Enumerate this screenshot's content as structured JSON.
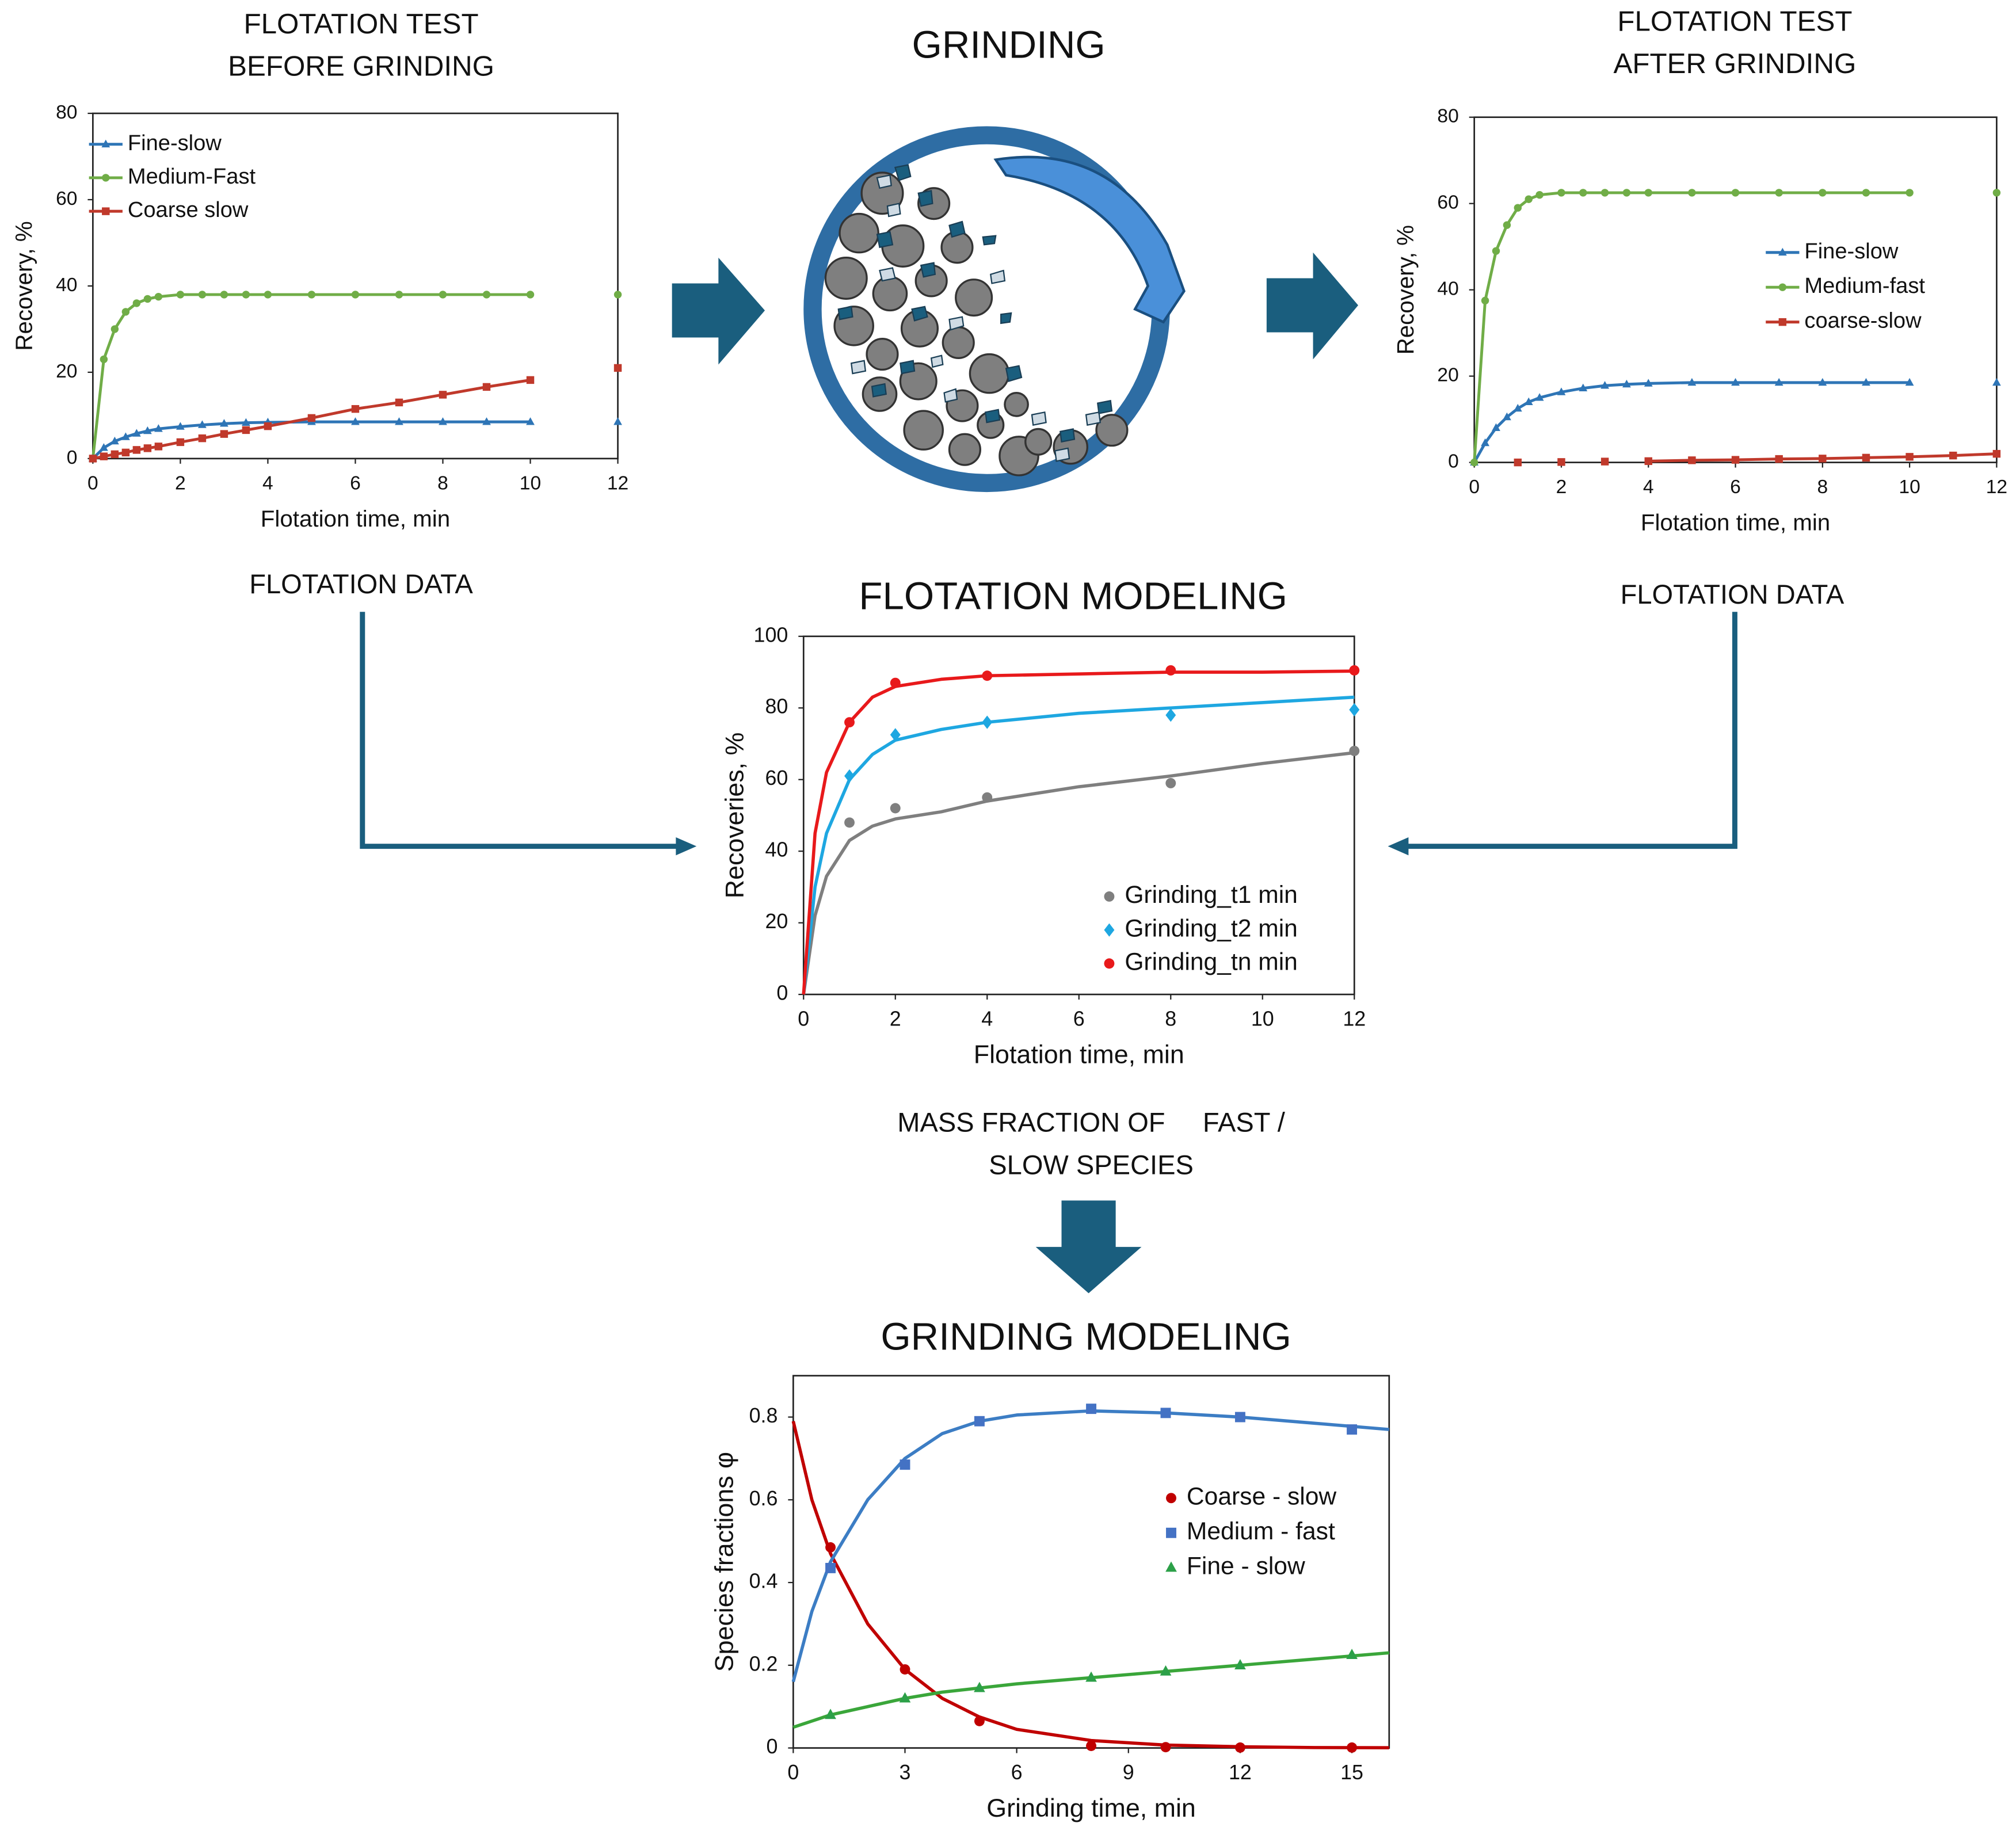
{
  "labels": {
    "grinding": "GRINDING",
    "flotation_data_left": "FLOTATION DATA",
    "flotation_data_right": "FLOTATION DATA",
    "mass_fraction": [
      "MASS FRACTION OF     FAST /",
      "SLOW SPECIES"
    ]
  },
  "chart_data": [
    {
      "type": "line",
      "title": [
        "FLOTATION TEST",
        "BEFORE GRINDING"
      ],
      "x_label": "Flotation time, min",
      "y_label": "Recovery, %",
      "x": [
        0,
        0.25,
        0.5,
        0.75,
        1,
        1.25,
        1.5,
        2,
        2.5,
        3,
        3.5,
        4,
        5,
        6,
        7,
        8,
        9,
        10,
        11,
        12
      ],
      "series": [
        {
          "name": "Fine-slow",
          "color": "#2e75b6",
          "marker": "triangle",
          "values": [
            0,
            2.5,
            4,
            5,
            5.8,
            6.4,
            6.9,
            7.4,
            7.8,
            8.1,
            8.3,
            8.4,
            8.5,
            8.5,
            8.5,
            8.5,
            8.5,
            8.5,
            null,
            8.5
          ]
        },
        {
          "name": "Medium-Fast",
          "color": "#70ad47",
          "marker": "circle",
          "values": [
            0,
            23,
            30,
            34,
            36,
            37,
            37.5,
            38,
            38,
            38,
            38,
            38,
            38,
            38,
            38,
            38,
            38,
            38,
            null,
            38
          ]
        },
        {
          "name": "Coarse slow",
          "color": "#c0392b",
          "marker": "square",
          "values": [
            0,
            0.5,
            1,
            1.4,
            2,
            2.4,
            2.8,
            3.8,
            4.7,
            5.7,
            6.6,
            7.5,
            9.4,
            11.5,
            13,
            14.8,
            16.6,
            18.2,
            null,
            21
          ]
        }
      ],
      "xlim": [
        0,
        12
      ],
      "xticks": [
        0,
        2,
        4,
        6,
        8,
        10,
        12
      ],
      "ylim": [
        0,
        80
      ],
      "yticks": [
        0,
        20,
        40,
        60,
        80
      ],
      "legend": "top-left"
    },
    {
      "type": "line",
      "title": [
        "FLOTATION TEST",
        "AFTER GRINDING"
      ],
      "x_label": "Flotation time, min",
      "y_label": "Recovery, %",
      "x": [
        0,
        0.25,
        0.5,
        0.75,
        1,
        1.25,
        1.5,
        2,
        2.5,
        3,
        3.5,
        4,
        5,
        6,
        7,
        8,
        9,
        10,
        11,
        12
      ],
      "series": [
        {
          "name": "Fine-slow",
          "color": "#2e75b6",
          "marker": "triangle",
          "values": [
            0,
            4.5,
            8,
            10.5,
            12.5,
            14,
            15,
            16.3,
            17.2,
            17.8,
            18.1,
            18.3,
            18.5,
            18.5,
            18.5,
            18.5,
            18.5,
            18.5,
            null,
            18.5
          ]
        },
        {
          "name": "Medium-fast",
          "color": "#70ad47",
          "marker": "circle",
          "values": [
            0,
            37.5,
            49,
            55,
            59,
            61,
            62,
            62.5,
            62.5,
            62.5,
            62.5,
            62.5,
            62.5,
            62.5,
            62.5,
            62.5,
            62.5,
            62.5,
            null,
            62.5
          ]
        },
        {
          "name": "coarse-slow",
          "color": "#c0392b",
          "marker": "square",
          "values": [
            null,
            null,
            null,
            null,
            0,
            null,
            null,
            0.1,
            null,
            0.2,
            null,
            0.3,
            0.5,
            0.6,
            0.8,
            0.9,
            1.1,
            1.3,
            1.6,
            2
          ]
        }
      ],
      "xlim": [
        0,
        12
      ],
      "xticks": [
        0,
        2,
        4,
        6,
        8,
        10,
        12
      ],
      "ylim": [
        0,
        80
      ],
      "yticks": [
        0,
        20,
        40,
        60,
        80
      ],
      "legend": "right"
    },
    {
      "type": "scatter",
      "title": "FLOTATION MODELING",
      "x_label": "Flotation time, min",
      "y_label": "Recoveries, %",
      "x": [
        1,
        2,
        4,
        8,
        12
      ],
      "series": [
        {
          "name": "Grinding_t1 min",
          "color": "#7f7f7f",
          "marker": "circle",
          "values": [
            48,
            52,
            55,
            59,
            68
          ]
        },
        {
          "name": "Grinding_t2 min",
          "color": "#1ea7e1",
          "marker": "diamond",
          "values": [
            61,
            72.5,
            76,
            78,
            79.5
          ]
        },
        {
          "name": "Grinding_tn min",
          "color": "#e8191b",
          "marker": "circle",
          "values": [
            76,
            87,
            89,
            90.5,
            90.5
          ]
        }
      ],
      "fit_x": [
        0,
        0.25,
        0.5,
        1,
        1.5,
        2,
        3,
        4,
        6,
        8,
        10,
        12
      ],
      "fits": [
        {
          "color": "#7f7f7f",
          "values": [
            0,
            22,
            33,
            43,
            47,
            49,
            51,
            54,
            58,
            61,
            64.5,
            67.5
          ]
        },
        {
          "color": "#1ea7e1",
          "values": [
            0,
            30,
            45,
            60,
            67,
            71,
            74,
            76,
            78.5,
            80,
            81.5,
            83
          ]
        },
        {
          "color": "#e8191b",
          "values": [
            0,
            45,
            62,
            76,
            83,
            86,
            88,
            89,
            89.5,
            90,
            90,
            90.3
          ]
        }
      ],
      "xlim": [
        0,
        12
      ],
      "xticks": [
        0,
        2,
        4,
        6,
        8,
        10,
        12
      ],
      "ylim": [
        0,
        100
      ],
      "yticks": [
        0,
        20,
        40,
        60,
        80,
        100
      ],
      "legend": "bottom-right"
    },
    {
      "type": "scatter",
      "title": "GRINDING MODELING",
      "x_label": "Grinding time, min",
      "y_label": "Species fractions φ",
      "x": [
        1,
        3,
        5,
        8,
        10,
        12,
        15
      ],
      "series": [
        {
          "name": "Coarse - slow",
          "color": "#c00000",
          "marker": "circle",
          "values": [
            0.485,
            0.19,
            0.065,
            0.005,
            0.002,
            0.001,
            0.001
          ]
        },
        {
          "name": "Medium - fast",
          "color": "#4472c4",
          "marker": "square",
          "values": [
            0.435,
            0.685,
            0.79,
            0.82,
            0.81,
            0.8,
            0.77
          ]
        },
        {
          "name": "Fine - slow",
          "color": "#2ca048",
          "marker": "triangle",
          "values": [
            0.08,
            0.12,
            0.145,
            0.17,
            0.185,
            0.2,
            0.225
          ]
        }
      ],
      "fit_x": [
        0,
        0.5,
        1,
        2,
        3,
        4,
        5,
        6,
        8,
        10,
        12,
        14,
        16
      ],
      "fits": [
        {
          "color": "#c00000",
          "values": [
            0.79,
            0.6,
            0.47,
            0.3,
            0.19,
            0.12,
            0.075,
            0.045,
            0.018,
            0.007,
            0.003,
            0.001,
            0.0005
          ]
        },
        {
          "color": "#3c7dc4",
          "values": [
            0.16,
            0.33,
            0.45,
            0.6,
            0.7,
            0.76,
            0.79,
            0.805,
            0.815,
            0.81,
            0.8,
            0.785,
            0.77
          ]
        },
        {
          "color": "#3aa63a",
          "values": [
            0.05,
            0.065,
            0.08,
            0.1,
            0.12,
            0.135,
            0.145,
            0.155,
            0.17,
            0.185,
            0.2,
            0.215,
            0.23
          ]
        }
      ],
      "xlim": [
        0,
        16
      ],
      "xticks": [
        0,
        3,
        6,
        9,
        12,
        15
      ],
      "ylim": [
        0,
        0.9
      ],
      "yticks": [
        0,
        0.2,
        0.4,
        0.6,
        0.8
      ],
      "legend": "right"
    }
  ]
}
